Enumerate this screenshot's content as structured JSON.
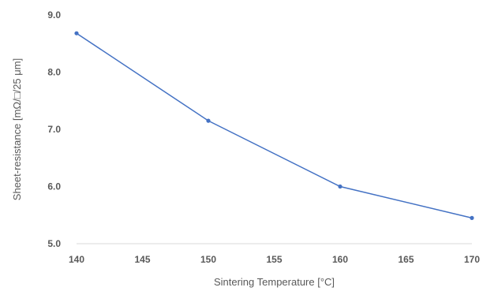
{
  "chart_data": {
    "type": "line",
    "title": "",
    "xlabel": "Sintering Temperature [°C]",
    "ylabel": "Sheet-resistance [mΩ/□/25 μm]",
    "x_ticks": [
      "140",
      "145",
      "150",
      "155",
      "160",
      "165",
      "170"
    ],
    "y_ticks": [
      "5.0",
      "6.0",
      "7.0",
      "8.0",
      "9.0"
    ],
    "xlim": [
      140,
      170
    ],
    "ylim": [
      5.0,
      9.0
    ],
    "grid": false,
    "legend": "none",
    "series": [
      {
        "color": "#4472C4",
        "x": [
          140,
          150,
          160,
          170
        ],
        "y": [
          8.68,
          7.15,
          6.0,
          5.45
        ]
      }
    ]
  }
}
